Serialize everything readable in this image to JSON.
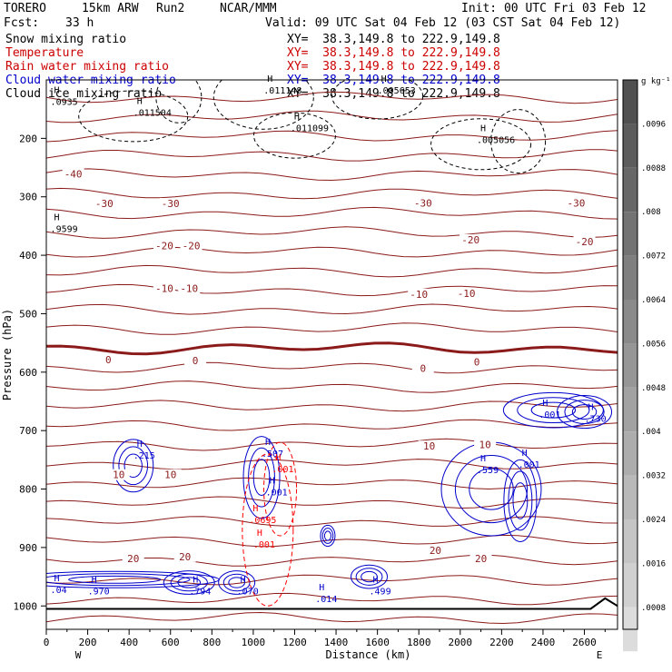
{
  "header": {
    "model": "TORERO",
    "resolution": "15km ARW",
    "run": "Run2",
    "org": "NCAR/MMM",
    "init": "Init: 00 UTC Fri 03 Feb 12",
    "fcst_label": "Fcst:",
    "fcst_value": "33 h",
    "valid": "Valid: 09 UTC Sat 04 Feb 12 (03 CST Sat 04 Feb 12)"
  },
  "fields": [
    {
      "label": "Snow mixing ratio",
      "xy": "XY=  38.3,149.8 to 222.9,149.8",
      "color": "#000000"
    },
    {
      "label": "Temperature",
      "xy": "XY=  38.3,149.8 to 222.9,149.8",
      "color": "#cc0000"
    },
    {
      "label": "Rain water mixing ratio",
      "xy": "XY=  38.3,149.8 to 222.9,149.8",
      "color": "#cc0000"
    },
    {
      "label": "Cloud water mixing ratio",
      "xy": "XY=  38.3,149.8 to 222.9,149.8",
      "color": "#0000cc"
    },
    {
      "label": "Cloud ice mixing ratio",
      "xy": "XY=  38.3,149.8 to 222.9,149.8",
      "color": "#000000"
    }
  ],
  "chart_data": {
    "type": "cross-section",
    "xlabel": "Distance (km)",
    "ylabel": "Pressure (hPa)",
    "xlim": [
      0,
      2760
    ],
    "ylim": [
      1040,
      100
    ],
    "x_ticks": [
      0,
      200,
      400,
      600,
      800,
      1000,
      1200,
      1400,
      1600,
      1800,
      2000,
      2200,
      2400,
      2600
    ],
    "y_ticks": [
      200,
      300,
      400,
      500,
      600,
      700,
      800,
      900,
      1000
    ],
    "x_end_labels": {
      "left": "W",
      "right": "E"
    },
    "colorbar": {
      "unit": "g kg⁻¹",
      "ticks": [
        ".0096",
        ".0088",
        ".008",
        ".0072",
        ".0064",
        ".0056",
        ".0048",
        ".004",
        ".0032",
        ".0024",
        ".0016",
        ".0008"
      ]
    },
    "temperature_labels": [
      {
        "text": "-40",
        "x": 130,
        "p": 262
      },
      {
        "text": "-30",
        "x": 280,
        "p": 313
      },
      {
        "text": "-30",
        "x": 600,
        "p": 313
      },
      {
        "text": "-30",
        "x": 1820,
        "p": 312
      },
      {
        "text": "-30",
        "x": 2560,
        "p": 312
      },
      {
        "text": "-20",
        "x": 570,
        "p": 385
      },
      {
        "text": "-20",
        "x": 700,
        "p": 385
      },
      {
        "text": "-20",
        "x": 2050,
        "p": 375
      },
      {
        "text": "-20",
        "x": 2600,
        "p": 378
      },
      {
        "text": "-10",
        "x": 570,
        "p": 458
      },
      {
        "text": "-10",
        "x": 690,
        "p": 458
      },
      {
        "text": "-10",
        "x": 1800,
        "p": 468
      },
      {
        "text": "-10",
        "x": 2030,
        "p": 467
      },
      {
        "text": "0",
        "x": 300,
        "p": 580
      },
      {
        "text": "0",
        "x": 720,
        "p": 582
      },
      {
        "text": "0",
        "x": 1820,
        "p": 595
      },
      {
        "text": "0",
        "x": 2080,
        "p": 584
      },
      {
        "text": "10",
        "x": 350,
        "p": 777
      },
      {
        "text": "10",
        "x": 600,
        "p": 777
      },
      {
        "text": "10",
        "x": 1850,
        "p": 728
      },
      {
        "text": "10",
        "x": 2120,
        "p": 725
      },
      {
        "text": "20",
        "x": 420,
        "p": 920
      },
      {
        "text": "20",
        "x": 670,
        "p": 917
      },
      {
        "text": "20",
        "x": 1880,
        "p": 906
      },
      {
        "text": "20",
        "x": 2100,
        "p": 920
      }
    ],
    "snow_maxima": [
      {
        "text": ".011504",
        "x": 420,
        "p": 158
      },
      {
        "text": ".011148",
        "x": 1050,
        "p": 120
      },
      {
        "text": ".005653",
        "x": 1600,
        "p": 120
      },
      {
        "text": ".011099",
        "x": 1180,
        "p": 185
      },
      {
        "text": ".005056",
        "x": 2080,
        "p": 205
      },
      {
        "text": ".0935",
        "x": 20,
        "p": 140
      },
      {
        "text": ".9599",
        "x": 20,
        "p": 357
      }
    ],
    "cloud_water_maxima": [
      {
        "text": ".215",
        "x": 420,
        "p": 745
      },
      {
        "text": ".507",
        "x": 1040,
        "p": 742
      },
      {
        "text": ".001",
        "x": 1060,
        "p": 808
      },
      {
        "text": ".559",
        "x": 2080,
        "p": 770
      },
      {
        "text": ".001",
        "x": 2280,
        "p": 760
      },
      {
        "text": ".001",
        "x": 2380,
        "p": 675
      },
      {
        "text": ".730",
        "x": 2600,
        "p": 682
      },
      {
        "text": ".970",
        "x": 200,
        "p": 977
      },
      {
        "text": ".794",
        "x": 690,
        "p": 977
      },
      {
        "text": ".070",
        "x": 920,
        "p": 977
      },
      {
        "text": ".014",
        "x": 1300,
        "p": 990
      },
      {
        "text": ".499",
        "x": 1560,
        "p": 977
      },
      {
        "text": ".04",
        "x": 20,
        "p": 975
      }
    ],
    "rain_maxima": [
      {
        "text": ".001",
        "x": 1090,
        "p": 768
      },
      {
        "text": ".0695",
        "x": 980,
        "p": 855
      },
      {
        "text": ".001",
        "x": 1000,
        "p": 897
      }
    ],
    "freezing_level_hpa": 575,
    "surface_pressure_hpa": 1005
  }
}
